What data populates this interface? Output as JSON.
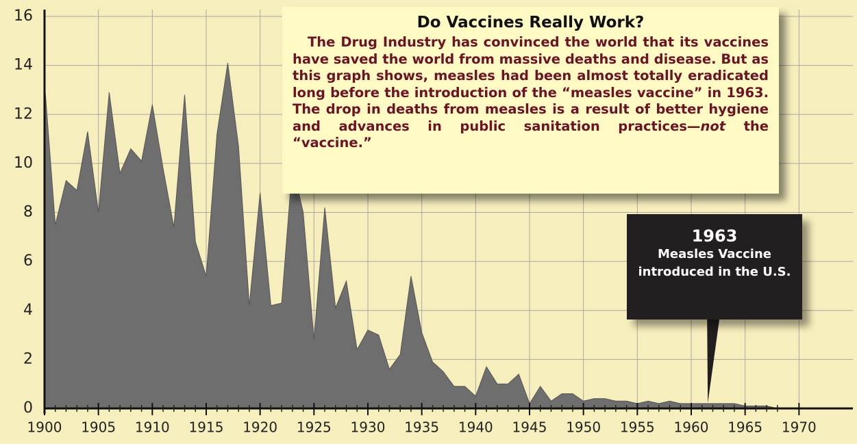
{
  "chart_data": {
    "type": "area",
    "x": [
      1900,
      1901,
      1902,
      1903,
      1904,
      1905,
      1906,
      1907,
      1908,
      1909,
      1910,
      1911,
      1912,
      1913,
      1914,
      1915,
      1916,
      1917,
      1918,
      1919,
      1920,
      1921,
      1922,
      1923,
      1924,
      1925,
      1926,
      1927,
      1928,
      1929,
      1930,
      1931,
      1932,
      1933,
      1934,
      1935,
      1936,
      1937,
      1938,
      1939,
      1940,
      1941,
      1942,
      1943,
      1944,
      1945,
      1946,
      1947,
      1948,
      1949,
      1950,
      1951,
      1952,
      1953,
      1954,
      1955,
      1956,
      1957,
      1958,
      1959,
      1960,
      1961,
      1962,
      1963,
      1964,
      1965,
      1966,
      1967,
      1968
    ],
    "values": [
      13.3,
      7.5,
      9.3,
      8.9,
      11.3,
      8.0,
      12.9,
      9.6,
      10.6,
      10.1,
      12.4,
      9.8,
      7.4,
      12.8,
      6.8,
      5.4,
      11.2,
      14.1,
      10.7,
      4.2,
      8.8,
      4.2,
      4.3,
      9.9,
      8.0,
      2.8,
      8.2,
      4.1,
      5.2,
      2.4,
      3.2,
      3.0,
      1.6,
      2.2,
      5.4,
      3.1,
      1.9,
      1.5,
      0.9,
      0.9,
      0.5,
      1.7,
      1.0,
      1.0,
      1.4,
      0.2,
      0.9,
      0.3,
      0.6,
      0.6,
      0.3,
      0.4,
      0.4,
      0.3,
      0.3,
      0.2,
      0.3,
      0.2,
      0.3,
      0.2,
      0.2,
      0.2,
      0.2,
      0.2,
      0.2,
      0.1,
      0.1,
      0.1,
      0.0
    ],
    "color": "#6e6e6e",
    "xlim": [
      1900,
      1975
    ],
    "xticks": [
      1900,
      1905,
      1910,
      1915,
      1920,
      1925,
      1930,
      1935,
      1940,
      1945,
      1950,
      1955,
      1960,
      1965,
      1970
    ],
    "ylim": [
      0,
      16
    ],
    "yticks": [
      0,
      2,
      4,
      6,
      8,
      10,
      12,
      14,
      16
    ],
    "grid": true,
    "note": {
      "title": "Do Vaccines Really Work?",
      "body_before": "The Drug Industry has convinced the world that its vaccines have saved the world from massive deaths and disease. But as this graph shows, measles had been almost totally eradicated long before the introduction of the “measles vaccine” in 1963. The drop in deaths from measles is a result of better hygiene and advances in public sanitation practices—",
      "body_emphasis": "not",
      "body_after": " the “vaccine.”"
    },
    "callout": {
      "year": 1963,
      "lines": [
        "Measles Vaccine",
        "introduced in the U.S."
      ]
    }
  }
}
